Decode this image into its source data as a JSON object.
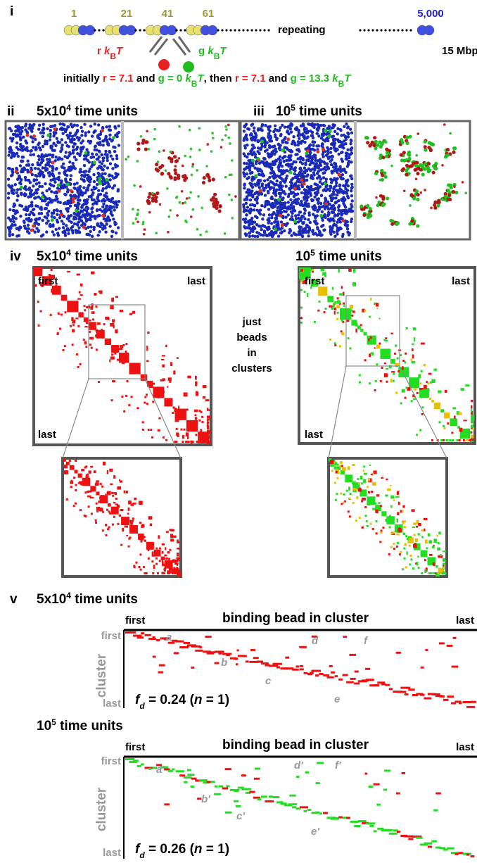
{
  "panel_i": {
    "label": "i",
    "bead_labels": [
      "1",
      "21",
      "41",
      "61",
      "5,000"
    ],
    "repeating": "repeating",
    "size": "15 Mbp",
    "red_energy": [
      "r ",
      "k",
      "B",
      "T"
    ],
    "green_energy": [
      "g ",
      "k",
      "B",
      "T"
    ],
    "caption": [
      "initially ",
      "r = 7.1",
      " and ",
      "g = 0",
      " ",
      "k",
      "B",
      "T",
      ", then ",
      "r = 7.1",
      " and ",
      "g = 13.3",
      " ",
      "k",
      "B",
      "T"
    ]
  },
  "panel_ii": {
    "label": "ii",
    "title": [
      "5x10",
      "4",
      " time units"
    ]
  },
  "panel_iii": {
    "label": "iii",
    "title": [
      "10",
      "5",
      " time units"
    ]
  },
  "panel_iv": {
    "label": "iv",
    "left_title": [
      "5x10",
      "4",
      " time units"
    ],
    "right_title": [
      "10",
      "5",
      " time units"
    ],
    "left_map_labels": [
      "first",
      "last",
      "last"
    ],
    "right_map_labels": [
      "first",
      "last",
      "last"
    ],
    "middle_note": [
      "just",
      "beads",
      "in",
      "clusters"
    ]
  },
  "panel_v": {
    "label": "v",
    "top": {
      "title": [
        "5x10",
        "4",
        " time units"
      ],
      "axis_title": "binding bead in cluster",
      "x_first": "first",
      "x_last": "last",
      "y_label": "cluster",
      "y_first": "first",
      "y_last": "last",
      "fd": [
        "f",
        "d",
        " = 0.24 (",
        "n",
        " = 1)"
      ],
      "letters": [
        "a",
        "b",
        "c",
        "d",
        "e",
        "f"
      ]
    },
    "bottom": {
      "title": [
        "10",
        "5",
        " time units"
      ],
      "axis_title": "binding bead in cluster",
      "x_first": "first",
      "x_last": "last",
      "y_label": "cluster",
      "y_first": "first",
      "y_last": "last",
      "fd": [
        "f",
        "d",
        " = 0.26 (",
        "n",
        " = 1)"
      ],
      "letters": [
        "a'",
        "b'",
        "c'",
        "d'",
        "e'",
        "f'"
      ]
    }
  }
}
